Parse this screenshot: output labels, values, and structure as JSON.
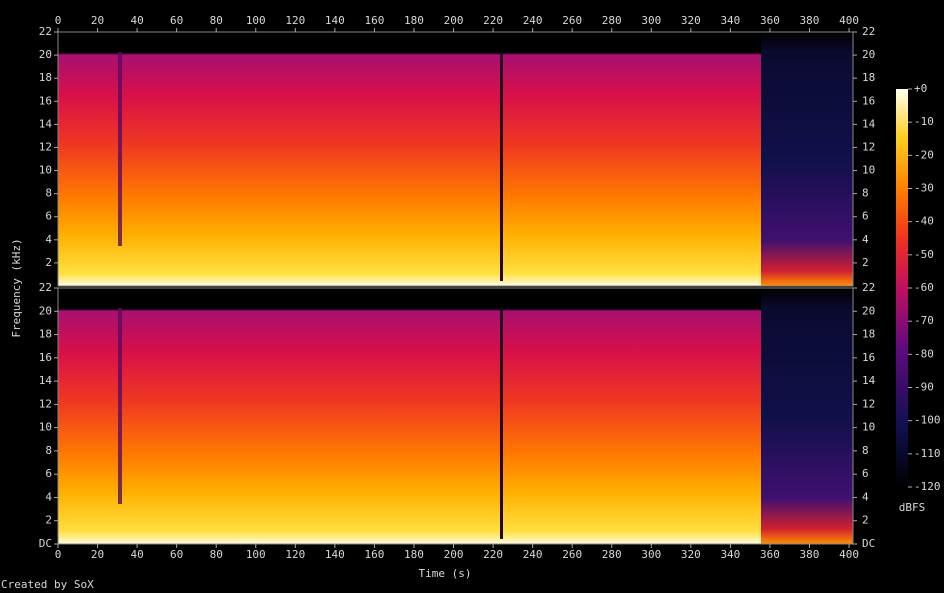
{
  "chart_data": [
    {
      "type": "spectrogram",
      "xlim": [
        0,
        402
      ],
      "xticks": [
        0,
        20,
        40,
        60,
        80,
        100,
        120,
        140,
        160,
        180,
        200,
        220,
        240,
        260,
        280,
        300,
        320,
        340,
        360,
        380,
        400
      ],
      "ylim": [
        0,
        22
      ],
      "yticks": [
        2,
        4,
        6,
        8,
        10,
        12,
        14,
        16,
        18,
        20,
        22
      ]
    },
    {
      "type": "spectrogram",
      "xlim": [
        0,
        402
      ],
      "xticks": [
        0,
        20,
        40,
        60,
        80,
        100,
        120,
        140,
        160,
        180,
        200,
        220,
        240,
        260,
        280,
        300,
        320,
        340,
        360,
        380,
        400
      ],
      "ylim": [
        0,
        22
      ],
      "yticks": [
        {
          "value": 0,
          "label": "DC"
        },
        2,
        4,
        6,
        8,
        10,
        12,
        14,
        16,
        18,
        20,
        22
      ]
    }
  ],
  "x_label": "Time (s)",
  "y_label": "Frequency (kHz)",
  "colorbar": {
    "label": "dBFS",
    "lim": [
      -120,
      0
    ],
    "ticks": [
      {
        "value": 0,
        "label": "+0"
      },
      -10,
      -20,
      -30,
      -40,
      -50,
      -60,
      -70,
      -80,
      -90,
      -100,
      -110,
      -120
    ]
  },
  "footer": "Created by SoX"
}
